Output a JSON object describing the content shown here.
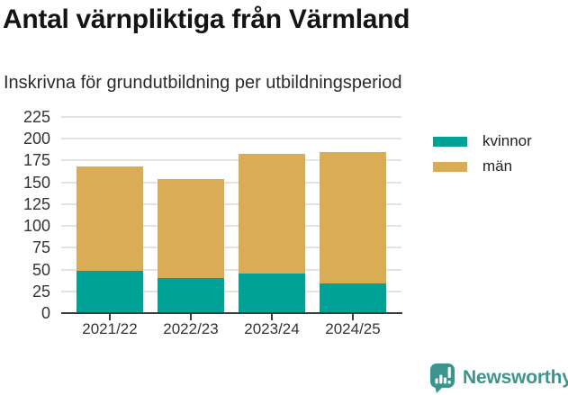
{
  "title": "Antal värnpliktiga från Värmland",
  "subtitle": "Inskrivna för grundutbildning per utbildningsperiod",
  "chart_data": {
    "type": "bar",
    "stacked": true,
    "categories": [
      "2021/22",
      "2022/23",
      "2023/24",
      "2024/25"
    ],
    "series": [
      {
        "name": "kvinnor",
        "color": "#00a295",
        "values": [
          49,
          40,
          45,
          34
        ]
      },
      {
        "name": "män",
        "color": "#d9ac55",
        "values": [
          120,
          114,
          137,
          151
        ]
      }
    ],
    "totals": [
      169,
      154,
      182,
      185
    ],
    "title": "Antal värnpliktiga från Värmland",
    "xlabel": "",
    "ylabel": "",
    "ylim": [
      0,
      225
    ],
    "ytick_step": 25,
    "yticks": [
      0,
      25,
      50,
      75,
      100,
      125,
      150,
      175,
      200,
      225
    ],
    "grid": "horizontal",
    "legend_position": "right"
  },
  "legend": {
    "items": [
      {
        "label": "kvinnor",
        "color": "#00a295"
      },
      {
        "label": "män",
        "color": "#d9ac55"
      }
    ]
  },
  "branding": {
    "logo_text": "Newsworthy",
    "logo_icon": "newsworthy-bar-chart-bubble-icon",
    "accent_color": "#3b958e"
  },
  "colors": {
    "grid": "#e6e2e2",
    "axis": "#3a3a3a",
    "axis_text": "#333333",
    "title_text": "#141414"
  }
}
